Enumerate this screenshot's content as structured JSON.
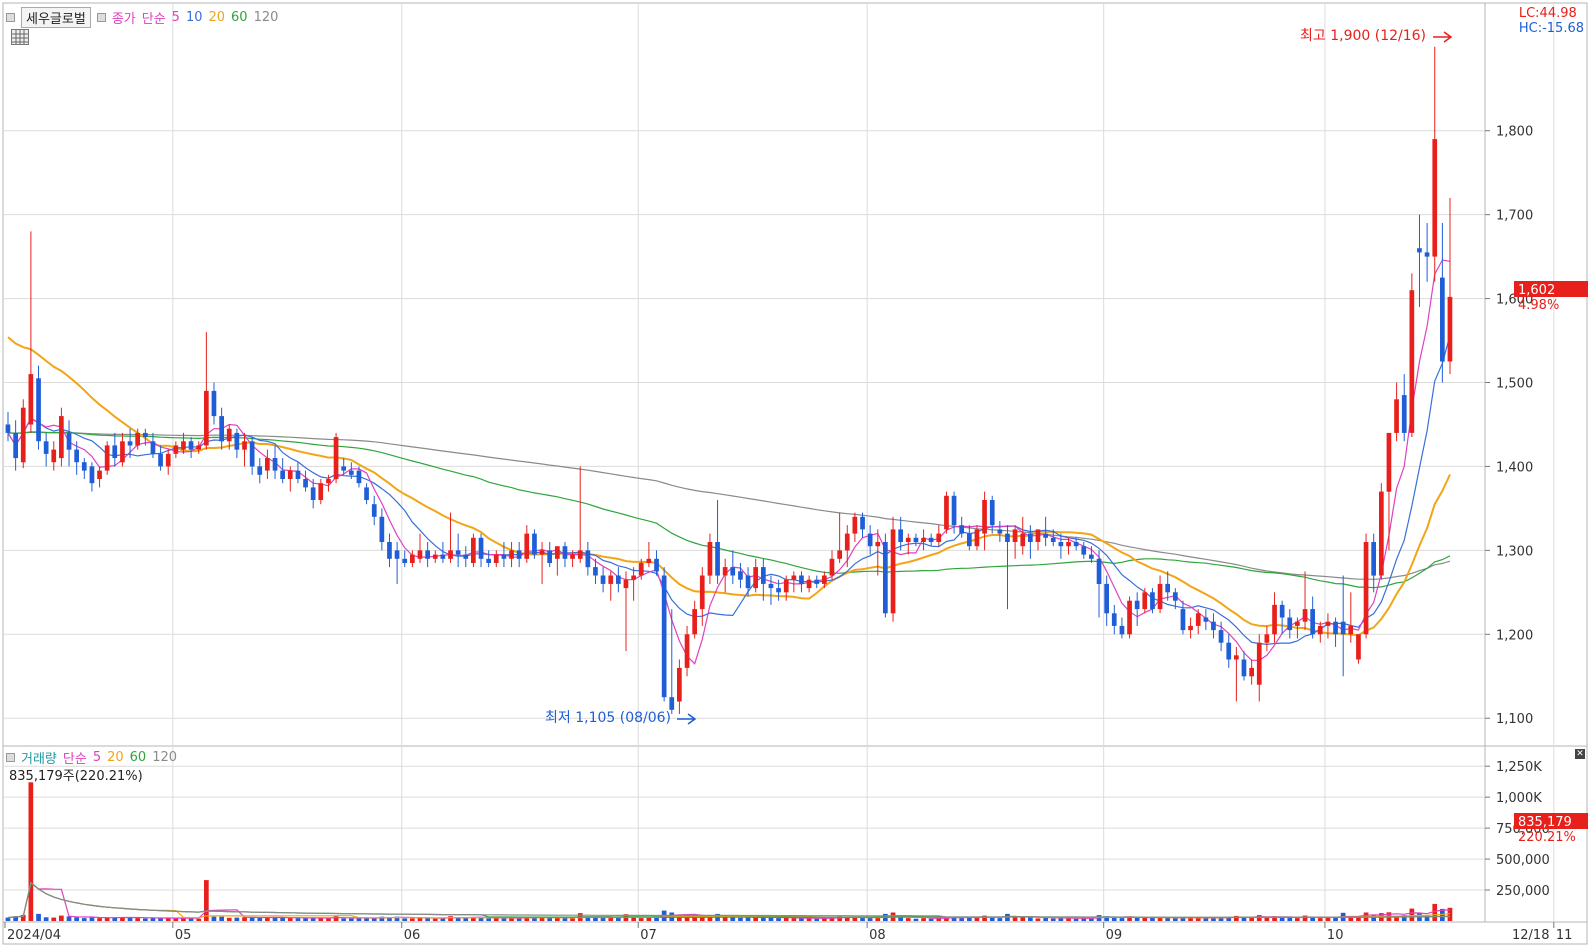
{
  "header": {
    "stock_name": "세우글로벌",
    "price_type": "종가",
    "ma_type": "단순",
    "ma_periods": [
      "5",
      "10",
      "20",
      "60",
      "120"
    ],
    "lc": "LC:44.98",
    "hc": "HC:-15.68"
  },
  "volume_header": {
    "title": "거래량",
    "ma_type": "단순",
    "ma_periods": [
      "5",
      "20",
      "60",
      "120"
    ],
    "current": "835,179주(220.21%)"
  },
  "annotations": {
    "high": "최고 1,900 (12/16)",
    "low": "최저 1,105 (08/06)"
  },
  "price_tag": {
    "value": "1,602",
    "change": "4.98%"
  },
  "volume_tag": {
    "value": "835,179",
    "change": "220.21%"
  },
  "colors": {
    "up": "#e8201c",
    "down": "#1f5ed6",
    "ma5": "#e040c0",
    "ma10": "#3a6fd8",
    "ma20": "#f2a516",
    "ma60": "#2ea63a",
    "ma120": "#8a8a8a",
    "grid": "#dcdcdc"
  },
  "chart_data": {
    "type": "candlestick",
    "price_axis": {
      "ticks": [
        "1,100",
        "1,200",
        "1,300",
        "1,400",
        "1,500",
        "1,600",
        "1,700",
        "1,800"
      ],
      "range": [
        1080,
        1920
      ]
    },
    "volume_axis": {
      "ticks": [
        "250,000",
        "500,000",
        "750,000",
        "1,000K",
        "1,250K"
      ],
      "range": [
        0,
        1300000
      ]
    },
    "x_labels": [
      "2024/04",
      "05",
      "06",
      "07",
      "08",
      "09",
      "10",
      "11",
      "12",
      "12/18"
    ],
    "candles_ohlc": [
      [
        1450,
        1465,
        1430,
        1440
      ],
      [
        1440,
        1455,
        1395,
        1410
      ],
      [
        1405,
        1480,
        1398,
        1470
      ],
      [
        1450,
        1680,
        1440,
        1510
      ],
      [
        1505,
        1520,
        1420,
        1430
      ],
      [
        1430,
        1440,
        1400,
        1415
      ],
      [
        1405,
        1430,
        1395,
        1420
      ],
      [
        1410,
        1470,
        1400,
        1460
      ],
      [
        1440,
        1455,
        1400,
        1420
      ],
      [
        1420,
        1430,
        1390,
        1405
      ],
      [
        1405,
        1410,
        1385,
        1395
      ],
      [
        1400,
        1405,
        1370,
        1380
      ],
      [
        1385,
        1400,
        1375,
        1395
      ],
      [
        1395,
        1430,
        1390,
        1425
      ],
      [
        1425,
        1440,
        1400,
        1410
      ],
      [
        1405,
        1440,
        1400,
        1430
      ],
      [
        1430,
        1445,
        1410,
        1425
      ],
      [
        1425,
        1445,
        1420,
        1440
      ],
      [
        1440,
        1445,
        1425,
        1435
      ],
      [
        1430,
        1440,
        1410,
        1415
      ],
      [
        1415,
        1425,
        1395,
        1400
      ],
      [
        1400,
        1420,
        1390,
        1415
      ],
      [
        1415,
        1430,
        1410,
        1425
      ],
      [
        1420,
        1440,
        1415,
        1430
      ],
      [
        1430,
        1435,
        1410,
        1420
      ],
      [
        1420,
        1430,
        1415,
        1425
      ],
      [
        1425,
        1560,
        1420,
        1490
      ],
      [
        1490,
        1500,
        1450,
        1460
      ],
      [
        1460,
        1470,
        1420,
        1430
      ],
      [
        1430,
        1450,
        1420,
        1445
      ],
      [
        1440,
        1445,
        1410,
        1420
      ],
      [
        1420,
        1440,
        1400,
        1430
      ],
      [
        1430,
        1435,
        1390,
        1400
      ],
      [
        1400,
        1410,
        1380,
        1390
      ],
      [
        1395,
        1420,
        1385,
        1410
      ],
      [
        1410,
        1425,
        1385,
        1395
      ],
      [
        1395,
        1410,
        1380,
        1385
      ],
      [
        1385,
        1400,
        1370,
        1395
      ],
      [
        1395,
        1405,
        1380,
        1385
      ],
      [
        1385,
        1395,
        1370,
        1375
      ],
      [
        1375,
        1385,
        1350,
        1360
      ],
      [
        1360,
        1385,
        1355,
        1380
      ],
      [
        1380,
        1390,
        1370,
        1385
      ],
      [
        1385,
        1440,
        1380,
        1435
      ],
      [
        1400,
        1410,
        1390,
        1395
      ],
      [
        1395,
        1405,
        1385,
        1390
      ],
      [
        1395,
        1400,
        1375,
        1380
      ],
      [
        1375,
        1380,
        1355,
        1360
      ],
      [
        1355,
        1365,
        1330,
        1340
      ],
      [
        1340,
        1350,
        1300,
        1310
      ],
      [
        1310,
        1320,
        1280,
        1290
      ],
      [
        1300,
        1310,
        1260,
        1290
      ],
      [
        1290,
        1300,
        1280,
        1285
      ],
      [
        1285,
        1300,
        1280,
        1295
      ],
      [
        1290,
        1320,
        1285,
        1300
      ],
      [
        1300,
        1310,
        1280,
        1290
      ],
      [
        1290,
        1300,
        1285,
        1295
      ],
      [
        1295,
        1310,
        1285,
        1290
      ],
      [
        1290,
        1345,
        1285,
        1300
      ],
      [
        1300,
        1320,
        1280,
        1295
      ],
      [
        1295,
        1305,
        1280,
        1290
      ],
      [
        1285,
        1320,
        1280,
        1315
      ],
      [
        1315,
        1320,
        1280,
        1290
      ],
      [
        1290,
        1300,
        1280,
        1285
      ],
      [
        1285,
        1300,
        1280,
        1295
      ],
      [
        1295,
        1310,
        1280,
        1290
      ],
      [
        1290,
        1310,
        1280,
        1300
      ],
      [
        1300,
        1310,
        1280,
        1290
      ],
      [
        1290,
        1330,
        1285,
        1320
      ],
      [
        1320,
        1325,
        1290,
        1295
      ],
      [
        1295,
        1310,
        1260,
        1300
      ],
      [
        1300,
        1310,
        1280,
        1285
      ],
      [
        1290,
        1300,
        1270,
        1305
      ],
      [
        1305,
        1310,
        1280,
        1290
      ],
      [
        1290,
        1300,
        1280,
        1295
      ],
      [
        1290,
        1400,
        1285,
        1300
      ],
      [
        1300,
        1310,
        1270,
        1280
      ],
      [
        1280,
        1290,
        1260,
        1270
      ],
      [
        1270,
        1280,
        1250,
        1260
      ],
      [
        1260,
        1275,
        1240,
        1270
      ],
      [
        1270,
        1280,
        1250,
        1260
      ],
      [
        1255,
        1275,
        1180,
        1265
      ],
      [
        1265,
        1280,
        1240,
        1270
      ],
      [
        1270,
        1290,
        1265,
        1285
      ],
      [
        1285,
        1310,
        1280,
        1290
      ],
      [
        1290,
        1300,
        1270,
        1275
      ],
      [
        1270,
        1280,
        1120,
        1125
      ],
      [
        1125,
        1230,
        1105,
        1110
      ],
      [
        1120,
        1170,
        1105,
        1160
      ],
      [
        1160,
        1210,
        1150,
        1200
      ],
      [
        1200,
        1240,
        1195,
        1230
      ],
      [
        1230,
        1280,
        1210,
        1270
      ],
      [
        1270,
        1320,
        1260,
        1310
      ],
      [
        1310,
        1360,
        1260,
        1270
      ],
      [
        1270,
        1290,
        1250,
        1280
      ],
      [
        1280,
        1300,
        1260,
        1270
      ],
      [
        1275,
        1285,
        1255,
        1265
      ],
      [
        1270,
        1280,
        1245,
        1255
      ],
      [
        1255,
        1290,
        1250,
        1280
      ],
      [
        1280,
        1290,
        1240,
        1260
      ],
      [
        1260,
        1270,
        1235,
        1255
      ],
      [
        1255,
        1265,
        1240,
        1250
      ],
      [
        1250,
        1270,
        1240,
        1265
      ],
      [
        1265,
        1275,
        1250,
        1270
      ],
      [
        1270,
        1275,
        1250,
        1260
      ],
      [
        1255,
        1270,
        1250,
        1265
      ],
      [
        1265,
        1270,
        1255,
        1260
      ],
      [
        1260,
        1275,
        1255,
        1270
      ],
      [
        1270,
        1300,
        1265,
        1290
      ],
      [
        1290,
        1345,
        1285,
        1300
      ],
      [
        1300,
        1330,
        1280,
        1320
      ],
      [
        1320,
        1345,
        1310,
        1340
      ],
      [
        1340,
        1345,
        1315,
        1325
      ],
      [
        1320,
        1330,
        1295,
        1305
      ],
      [
        1305,
        1325,
        1270,
        1310
      ],
      [
        1310,
        1320,
        1220,
        1225
      ],
      [
        1225,
        1340,
        1215,
        1325
      ],
      [
        1325,
        1340,
        1300,
        1310
      ],
      [
        1310,
        1320,
        1295,
        1315
      ],
      [
        1315,
        1320,
        1305,
        1310
      ],
      [
        1310,
        1325,
        1300,
        1315
      ],
      [
        1315,
        1320,
        1305,
        1310
      ],
      [
        1310,
        1330,
        1305,
        1320
      ],
      [
        1325,
        1370,
        1320,
        1365
      ],
      [
        1365,
        1370,
        1320,
        1330
      ],
      [
        1330,
        1340,
        1315,
        1320
      ],
      [
        1320,
        1330,
        1300,
        1305
      ],
      [
        1305,
        1330,
        1300,
        1325
      ],
      [
        1320,
        1370,
        1300,
        1360
      ],
      [
        1360,
        1365,
        1320,
        1330
      ],
      [
        1325,
        1335,
        1310,
        1320
      ],
      [
        1320,
        1330,
        1230,
        1310
      ],
      [
        1310,
        1330,
        1290,
        1325
      ],
      [
        1305,
        1340,
        1295,
        1320
      ],
      [
        1320,
        1330,
        1290,
        1310
      ],
      [
        1310,
        1320,
        1300,
        1325
      ],
      [
        1320,
        1340,
        1305,
        1315
      ],
      [
        1315,
        1325,
        1305,
        1310
      ],
      [
        1310,
        1320,
        1290,
        1305
      ],
      [
        1305,
        1315,
        1295,
        1310
      ],
      [
        1310,
        1315,
        1300,
        1305
      ],
      [
        1305,
        1310,
        1290,
        1295
      ],
      [
        1295,
        1305,
        1285,
        1290
      ],
      [
        1290,
        1300,
        1220,
        1260
      ],
      [
        1260,
        1270,
        1210,
        1225
      ],
      [
        1225,
        1235,
        1200,
        1210
      ],
      [
        1210,
        1220,
        1195,
        1200
      ],
      [
        1200,
        1245,
        1195,
        1240
      ],
      [
        1240,
        1250,
        1210,
        1230
      ],
      [
        1230,
        1255,
        1225,
        1250
      ],
      [
        1250,
        1255,
        1225,
        1230
      ],
      [
        1230,
        1270,
        1225,
        1260
      ],
      [
        1260,
        1275,
        1240,
        1250
      ],
      [
        1250,
        1255,
        1230,
        1240
      ],
      [
        1230,
        1240,
        1200,
        1205
      ],
      [
        1205,
        1220,
        1195,
        1210
      ],
      [
        1210,
        1230,
        1200,
        1225
      ],
      [
        1220,
        1230,
        1205,
        1215
      ],
      [
        1215,
        1225,
        1195,
        1205
      ],
      [
        1205,
        1215,
        1180,
        1190
      ],
      [
        1190,
        1200,
        1160,
        1170
      ],
      [
        1170,
        1185,
        1120,
        1175
      ],
      [
        1170,
        1180,
        1145,
        1150
      ],
      [
        1150,
        1170,
        1140,
        1160
      ],
      [
        1140,
        1200,
        1120,
        1190
      ],
      [
        1190,
        1210,
        1180,
        1200
      ],
      [
        1200,
        1250,
        1190,
        1235
      ],
      [
        1235,
        1240,
        1200,
        1220
      ],
      [
        1220,
        1230,
        1195,
        1205
      ],
      [
        1210,
        1220,
        1195,
        1215
      ],
      [
        1215,
        1275,
        1205,
        1230
      ],
      [
        1230,
        1245,
        1195,
        1200
      ],
      [
        1200,
        1215,
        1190,
        1210
      ],
      [
        1210,
        1225,
        1195,
        1215
      ],
      [
        1215,
        1220,
        1185,
        1200
      ],
      [
        1215,
        1270,
        1150,
        1200
      ],
      [
        1200,
        1250,
        1190,
        1210
      ],
      [
        1170,
        1200,
        1165,
        1200
      ],
      [
        1200,
        1320,
        1195,
        1310
      ],
      [
        1310,
        1320,
        1250,
        1270
      ],
      [
        1270,
        1380,
        1265,
        1370
      ],
      [
        1370,
        1430,
        1300,
        1440
      ],
      [
        1440,
        1500,
        1430,
        1480
      ],
      [
        1485,
        1510,
        1430,
        1440
      ],
      [
        1440,
        1630,
        1435,
        1610
      ],
      [
        1660,
        1700,
        1590,
        1655
      ],
      [
        1655,
        1690,
        1620,
        1650
      ],
      [
        1650,
        1900,
        1620,
        1790
      ],
      [
        1625,
        1690,
        1500,
        1525
      ],
      [
        1525,
        1720,
        1510,
        1602
      ]
    ]
  }
}
